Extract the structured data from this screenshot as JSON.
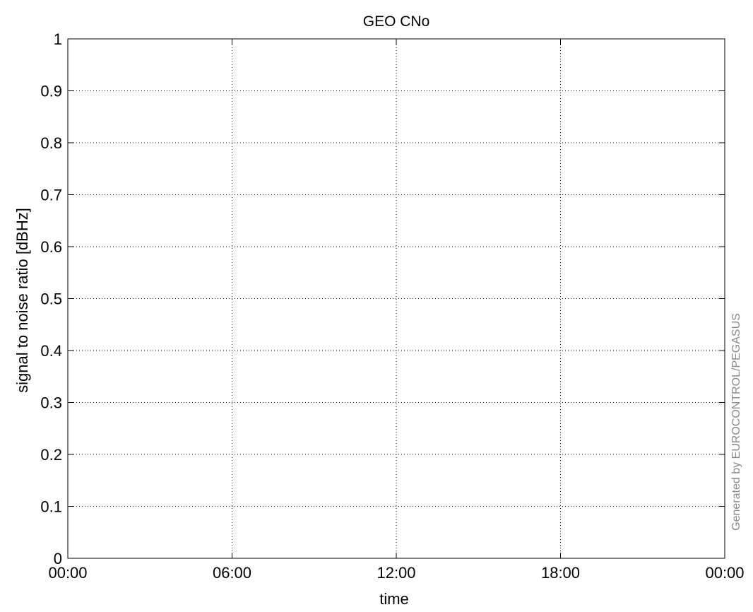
{
  "chart_data": {
    "type": "line",
    "title": "GEO CNo",
    "xlabel": "time",
    "ylabel": "signal to noise ratio [dBHz]",
    "x_ticks": [
      "00:00",
      "06:00",
      "12:00",
      "18:00",
      "00:00"
    ],
    "y_ticks": [
      "0",
      "0.1",
      "0.2",
      "0.3",
      "0.4",
      "0.5",
      "0.6",
      "0.7",
      "0.8",
      "0.9",
      "1"
    ],
    "ylim": [
      0,
      1
    ],
    "grid": true,
    "series": []
  },
  "watermark": "Generated by EUROCONTROL/PEGASUS"
}
